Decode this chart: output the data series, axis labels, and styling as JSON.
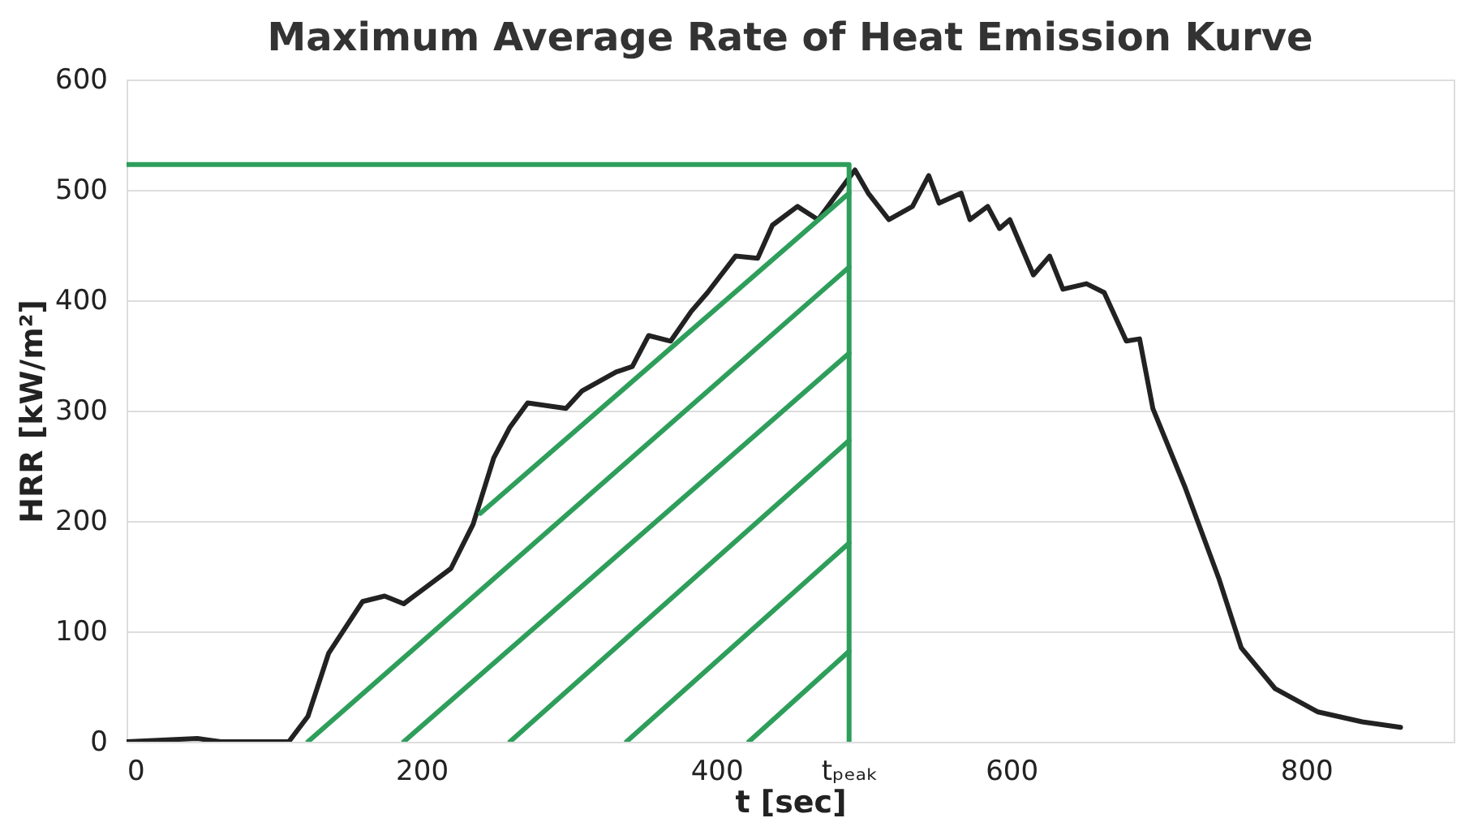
{
  "chart_data": {
    "type": "line",
    "title": "Maximum Average Rate of Heat Emission Kurve",
    "xlabel": "t [sec]",
    "ylabel": "HRR [kW/m²]",
    "xlim": [
      0,
      900
    ],
    "xticks": [
      0,
      200,
      400,
      {
        "value": 490,
        "label": "tₚₑₐₖ"
      },
      600,
      800
    ],
    "ylim": [
      0,
      600
    ],
    "yticks": [
      0,
      100,
      200,
      300,
      400,
      500,
      600
    ],
    "grid": "y",
    "legend": false,
    "marker": "none",
    "line_style": "solid",
    "series": [
      {
        "color": "#222222",
        "x": [
          0,
          48,
          64,
          110,
          123,
          137,
          160,
          175,
          188,
          201,
          220,
          235,
          249,
          260,
          272,
          298,
          309,
          332,
          343,
          354,
          369,
          383,
          394,
          413,
          428,
          438,
          455,
          469,
          480,
          494,
          503,
          517,
          533,
          544,
          551,
          566,
          572,
          584,
          592,
          599,
          615,
          626,
          635,
          651,
          663,
          678,
          687,
          696,
          718,
          741,
          756,
          779,
          808,
          838,
          864
        ],
        "values": [
          0,
          3,
          0,
          0,
          23,
          80,
          127,
          132,
          125,
          138,
          157,
          197,
          257,
          285,
          307,
          302,
          318,
          335,
          340,
          368,
          363,
          390,
          407,
          440,
          438,
          468,
          485,
          473,
          493,
          518,
          497,
          473,
          485,
          513,
          488,
          497,
          473,
          485,
          465,
          473,
          423,
          440,
          410,
          415,
          407,
          363,
          365,
          302,
          230,
          147,
          85,
          48,
          27,
          18,
          13
        ]
      },
      {
        "color": "#2e9e5b",
        "x": [
          0,
          490,
          490
        ],
        "values": [
          523,
          523,
          0
        ]
      },
      {
        "color": "#2e9e5b",
        "x": [
          240,
          490
        ],
        "values": [
          207,
          497
        ]
      },
      {
        "color": "#2e9e5b",
        "x": [
          123,
          490
        ],
        "values": [
          0,
          430
        ]
      },
      {
        "color": "#2e9e5b",
        "x": [
          188,
          490
        ],
        "values": [
          0,
          352
        ]
      },
      {
        "color": "#2e9e5b",
        "x": [
          260,
          490
        ],
        "values": [
          0,
          273
        ]
      },
      {
        "color": "#2e9e5b",
        "x": [
          339,
          490
        ],
        "values": [
          0,
          180
        ]
      },
      {
        "color": "#2e9e5b",
        "x": [
          422,
          490
        ],
        "values": [
          0,
          82
        ]
      }
    ]
  }
}
